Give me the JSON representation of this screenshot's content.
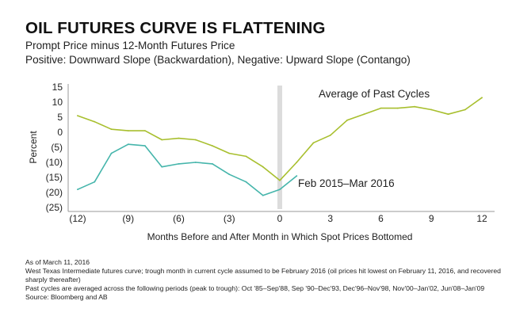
{
  "header": {
    "title": "OIL FUTURES CURVE IS FLATTENING",
    "subtitle1": "Prompt Price minus 12-Month Futures Price",
    "subtitle2": "Positive: Downward Slope (Backwardation), Negative: Upward Slope (Contango)"
  },
  "colors": {
    "average": "#a8bf2e",
    "current": "#45b5ab",
    "zero_band": "#dcdcdc",
    "axis": "#999999"
  },
  "chart_data": {
    "type": "line",
    "xlabel": "Months Before and After Month in Which Spot Prices Bottomed",
    "ylabel": "Percent",
    "xlim": [
      -12,
      12
    ],
    "ylim": [
      -25,
      15
    ],
    "x_ticks": [
      {
        "value": -12,
        "label": "(12)"
      },
      {
        "value": -9,
        "label": "(9)"
      },
      {
        "value": -6,
        "label": "(6)"
      },
      {
        "value": -3,
        "label": "(3)"
      },
      {
        "value": 0,
        "label": "0"
      },
      {
        "value": 3,
        "label": "3"
      },
      {
        "value": 6,
        "label": "6"
      },
      {
        "value": 9,
        "label": "9"
      },
      {
        "value": 12,
        "label": "12"
      }
    ],
    "y_ticks": [
      {
        "value": 15,
        "label": "15"
      },
      {
        "value": 10,
        "label": "10"
      },
      {
        "value": 5,
        "label": "5"
      },
      {
        "value": 0,
        "label": "0"
      },
      {
        "value": -5,
        "label": "(5)"
      },
      {
        "value": -10,
        "label": "(10)"
      },
      {
        "value": -15,
        "label": "(15)"
      },
      {
        "value": -20,
        "label": "(20)"
      },
      {
        "value": -25,
        "label": "(25)"
      }
    ],
    "grid": false,
    "series": [
      {
        "name": "Average of Past Cycles",
        "x": [
          -12,
          -11,
          -10,
          -9,
          -8,
          -7,
          -6,
          -5,
          -4,
          -3,
          -2,
          -1,
          0,
          1,
          2,
          3,
          4,
          5,
          6,
          7,
          8,
          9,
          10,
          11,
          12
        ],
        "values": [
          5.5,
          3.5,
          1,
          0.5,
          0.5,
          -2.5,
          -2,
          -2.5,
          -4.5,
          -7,
          -8,
          -11.5,
          -16,
          -10,
          -3.5,
          -1,
          4,
          6,
          8,
          8,
          8.5,
          7.5,
          6,
          7.5,
          11.5
        ]
      },
      {
        "name": "Feb 2015–Mar 2016",
        "x": [
          -12,
          -11,
          -10,
          -9,
          -8,
          -7,
          -6,
          -5,
          -4,
          -3,
          -2,
          -1,
          0,
          1
        ],
        "values": [
          -19,
          -16.5,
          -7,
          -4,
          -4.5,
          -11.5,
          -10.5,
          -10,
          -10.5,
          -14,
          -16.5,
          -21,
          -19,
          -14.5
        ]
      }
    ]
  },
  "notes": {
    "line1": "As of March 11, 2016",
    "line2": "West Texas Intermediate futures curve; trough month in current cycle assumed to be February 2016 (oil prices hit lowest on February 11, 2016, and recovered sharply thereafter)",
    "line3": "Past cycles are averaged across the following periods (peak to trough): Oct '85–Sep'88, Sep '90–Dec'93, Dec'96–Nov'98, Nov'00–Jan'02, Jun'08–Jan'09",
    "line4": "Source: Bloomberg and AB"
  }
}
